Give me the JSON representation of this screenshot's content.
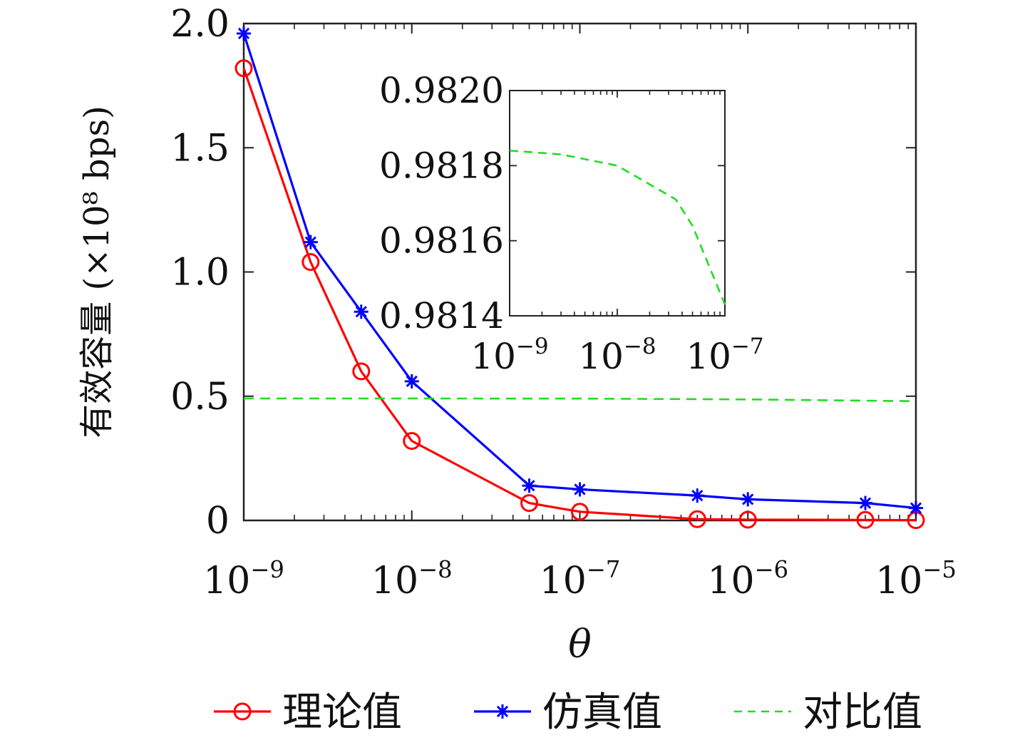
{
  "chart_data": [
    {
      "type": "line",
      "xscale": "log",
      "xlabel": "θ",
      "ylabel": "有效容量 (×10⁸ bps)",
      "ylim": [
        0,
        2.0
      ],
      "xlim": [
        1e-09,
        1e-05
      ],
      "yticks": [
        0,
        0.5,
        1.0,
        1.5,
        2.0
      ],
      "ytick_labels": [
        "0",
        "0.5",
        "1.0",
        "1.5",
        "2.0"
      ],
      "xticks": [
        1e-09,
        1e-08,
        1e-07,
        1e-06,
        1e-05
      ],
      "xtick_labels": [
        {
          "base": "10",
          "exp": "−9"
        },
        {
          "base": "10",
          "exp": "−8"
        },
        {
          "base": "10",
          "exp": "−7"
        },
        {
          "base": "10",
          "exp": "−6"
        },
        {
          "base": "10",
          "exp": "−5"
        }
      ],
      "x": [
        1e-09,
        2.5e-09,
        5e-09,
        1e-08,
        5e-08,
        1e-07,
        5e-07,
        1e-06,
        5e-06,
        1e-05
      ],
      "series": [
        {
          "name": "理论值",
          "color": "#ff0000",
          "marker": "circle",
          "style": "solid",
          "values": [
            1.82,
            1.04,
            0.6,
            0.32,
            0.07,
            0.035,
            0.005,
            0.003,
            0.002,
            0.001
          ]
        },
        {
          "name": "仿真值",
          "color": "#0000ff",
          "marker": "star",
          "style": "solid",
          "values": [
            1.96,
            1.12,
            0.84,
            0.56,
            0.14,
            0.125,
            0.1,
            0.085,
            0.07,
            0.05
          ]
        },
        {
          "name": "对比值",
          "color": "#22dd22",
          "marker": "none",
          "style": "dashed",
          "x": [
            1e-09,
            1e-08,
            1e-07,
            1e-06,
            1e-05
          ],
          "values": [
            0.4909,
            0.4908,
            0.4904,
            0.487,
            0.48
          ]
        }
      ],
      "grid": false,
      "legend_position": "bottom"
    },
    {
      "type": "line",
      "xscale": "log",
      "xlim": [
        1e-09,
        1e-07
      ],
      "ylim": [
        0.9814,
        0.982
      ],
      "yticks": [
        0.9814,
        0.9816,
        0.9818,
        0.982
      ],
      "ytick_labels": [
        "0.9814",
        "0.9816",
        "0.9818",
        "0.9820"
      ],
      "xticks": [
        1e-09,
        1e-08,
        1e-07
      ],
      "xtick_labels": [
        {
          "base": "10",
          "exp": "−9"
        },
        {
          "base": "10",
          "exp": "−8"
        },
        {
          "base": "10",
          "exp": "−7"
        }
      ],
      "series": [
        {
          "name": "对比值",
          "color": "#22dd22",
          "style": "dashed",
          "x": [
            1e-09,
            3e-09,
            1e-08,
            3.5e-08,
            5e-08,
            1e-07
          ],
          "values": [
            0.98184,
            0.98183,
            0.9818,
            0.98171,
            0.98164,
            0.98143
          ]
        }
      ],
      "grid": false
    }
  ]
}
